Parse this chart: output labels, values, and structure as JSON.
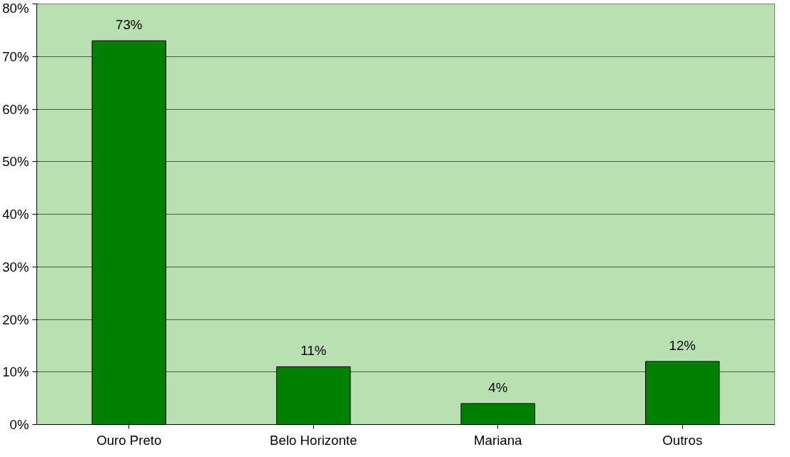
{
  "chart_data": {
    "type": "bar",
    "categories": [
      "Ouro Preto",
      "Belo Horizonte",
      "Mariana",
      "Outros"
    ],
    "values": [
      73,
      11,
      4,
      12
    ],
    "value_labels": [
      "73%",
      "11%",
      "4%",
      "12%"
    ],
    "color": "#008000",
    "ylim": [
      0,
      80
    ],
    "yticks": [
      {
        "value": 0,
        "label": "0%"
      },
      {
        "value": 10,
        "label": "10%"
      },
      {
        "value": 20,
        "label": "20%"
      },
      {
        "value": 30,
        "label": "30%"
      },
      {
        "value": 40,
        "label": "40%"
      },
      {
        "value": 50,
        "label": "50%"
      },
      {
        "value": 60,
        "label": "60%"
      },
      {
        "value": 70,
        "label": "70%"
      },
      {
        "value": 80,
        "label": "80%"
      }
    ],
    "grid": "y"
  }
}
